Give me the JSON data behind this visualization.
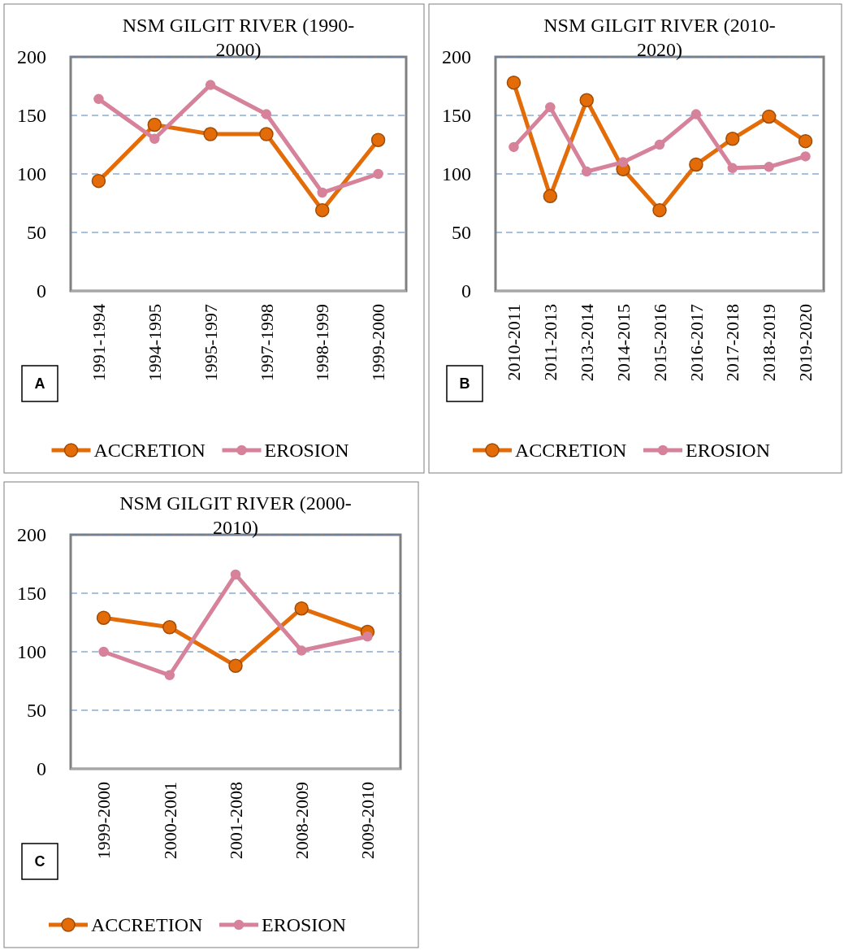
{
  "chart_data": [
    {
      "type": "line",
      "title": "NSM GILGIT RIVER (1990-2000)",
      "categories": [
        "1991-1994",
        "1994-1995",
        "1995-1997",
        "1997-1998",
        "1998-1999",
        "1999-2000"
      ],
      "series": [
        {
          "name": "ACCRETION",
          "color": "#e36c09",
          "values": [
            94,
            142,
            134,
            134,
            69,
            129
          ]
        },
        {
          "name": "EROSION",
          "color": "#d6829a",
          "values": [
            164,
            130,
            176,
            151,
            84,
            100
          ]
        }
      ],
      "ylim": [
        0,
        200
      ],
      "yticks": [
        0,
        50,
        100,
        150,
        200
      ],
      "grid": "y",
      "legend": "bottom",
      "marker": "circle",
      "annotations": [
        "A"
      ]
    },
    {
      "type": "line",
      "title": "NSM GILGIT RIVER (2010-2020)",
      "categories": [
        "2010-2011",
        "2011-2013",
        "2013-2014",
        "2014-2015",
        "2015-2016",
        "2016-2017",
        "2017-2018",
        "2018-2019",
        "2019-2020"
      ],
      "series": [
        {
          "name": "ACCRETION",
          "color": "#e36c09",
          "values": [
            178,
            81,
            163,
            104,
            69,
            108,
            130,
            149,
            128
          ]
        },
        {
          "name": "EROSION",
          "color": "#d6829a",
          "values": [
            123,
            157,
            102,
            110,
            125,
            151,
            105,
            106,
            115
          ]
        }
      ],
      "ylim": [
        0,
        200
      ],
      "yticks": [
        0,
        50,
        100,
        150,
        200
      ],
      "grid": "y",
      "legend": "bottom",
      "marker": "circle",
      "annotations": [
        "B"
      ]
    },
    {
      "type": "line",
      "title": "NSM GILGIT RIVER (2000-2010)",
      "categories": [
        "1999-2000",
        "2000-2001",
        "2001-2008",
        "2008-2009",
        "2009-2010"
      ],
      "series": [
        {
          "name": "ACCRETION",
          "color": "#e36c09",
          "values": [
            129,
            121,
            88,
            137,
            117
          ]
        },
        {
          "name": "EROSION",
          "color": "#d6829a",
          "values": [
            100,
            80,
            166,
            101,
            113
          ]
        }
      ],
      "ylim": [
        0,
        200
      ],
      "yticks": [
        0,
        50,
        100,
        150,
        200
      ],
      "grid": "y",
      "legend": "bottom",
      "marker": "circle",
      "annotations": [
        "C"
      ]
    }
  ]
}
